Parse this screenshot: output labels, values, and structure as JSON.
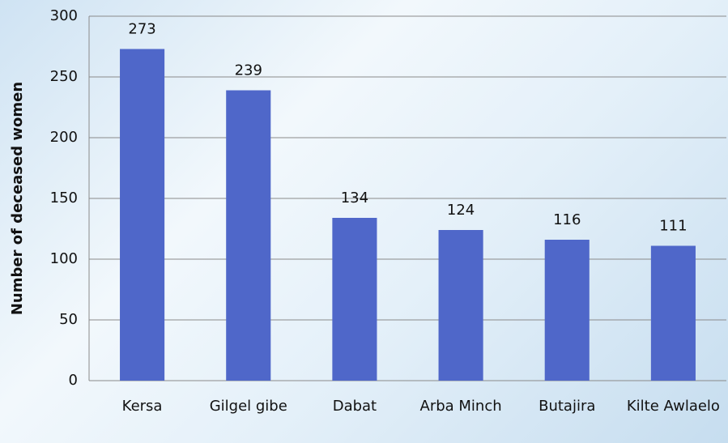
{
  "chart_data": {
    "type": "bar",
    "y_label": "Number of deceased women",
    "categories": [
      "Kersa",
      "Gilgel gibe",
      "Dabat",
      "Arba Minch",
      "Butajira",
      "Kilte Awlaelo"
    ],
    "values": [
      273,
      239,
      134,
      124,
      116,
      111
    ],
    "color": "#4f67c9",
    "ylim": [
      0,
      300
    ],
    "yticks": [
      0,
      50,
      100,
      150,
      200,
      250,
      300
    ],
    "grid": true
  }
}
